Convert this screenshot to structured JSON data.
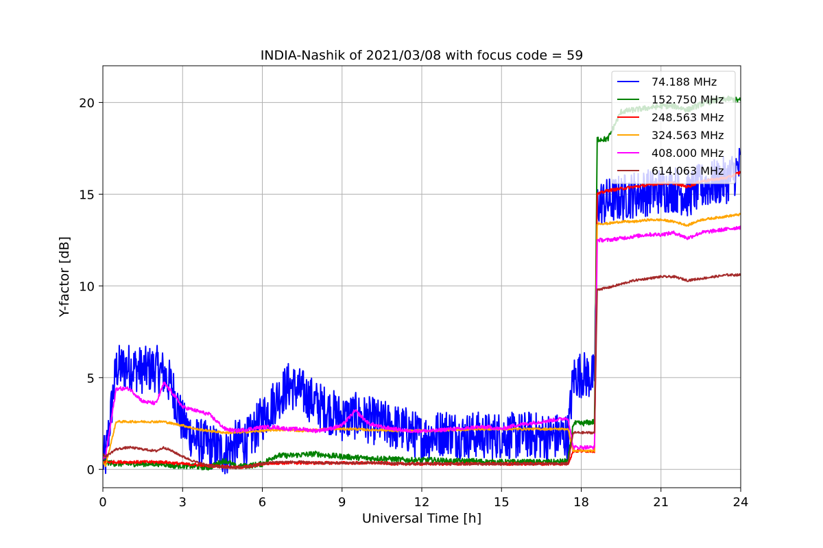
{
  "chart_data": {
    "type": "line",
    "title": "INDIA-Nashik of 2021/03/08 with focus code = 59",
    "xlabel": "Universal Time [h]",
    "ylabel": "Y-factor [dB]",
    "xlim": [
      0,
      24
    ],
    "ylim": [
      -1,
      22
    ],
    "x_ticks": [
      0,
      3,
      6,
      9,
      12,
      15,
      18,
      21,
      24
    ],
    "y_ticks": [
      0,
      5,
      10,
      15,
      20
    ],
    "grid": true,
    "legend_position": "top-right",
    "x": [
      0,
      0.1,
      0.5,
      1,
      1.5,
      2,
      2.3,
      2.6,
      3,
      3.5,
      4,
      4.6,
      5,
      5.5,
      6,
      6.5,
      7,
      7.5,
      8,
      8.5,
      9,
      9.5,
      10,
      10.5,
      11,
      11.5,
      12,
      12.5,
      13,
      13.5,
      14,
      14.5,
      15,
      15.5,
      16,
      16.5,
      17,
      17.5,
      17.7,
      18,
      18.5,
      18.6,
      19,
      19.5,
      20,
      20.5,
      21,
      21.5,
      22,
      22.5,
      23,
      23.5,
      24
    ],
    "series": [
      {
        "name": " 74.188 MHz",
        "color": "#0000ff",
        "noise": 1.3,
        "values": [
          0.5,
          0.6,
          5.5,
          5.6,
          5.4,
          5.5,
          5.2,
          4.5,
          2.5,
          1.6,
          1.3,
          0.9,
          1.4,
          1.6,
          2.8,
          3.8,
          4.6,
          4.2,
          3.6,
          3.2,
          2.8,
          2.9,
          2.7,
          2.5,
          2.3,
          2.1,
          1.7,
          1.9,
          2.1,
          1.8,
          1.9,
          1.8,
          1.9,
          1.8,
          1.9,
          1.8,
          1.8,
          1.8,
          5.0,
          5.2,
          5.0,
          14.5,
          14.6,
          14.8,
          15.0,
          15.1,
          15.2,
          15.3,
          15.0,
          15.4,
          15.6,
          15.8,
          16.5
        ]
      },
      {
        "name": "152.750 MHz",
        "color": "#008000",
        "noise": 0.15,
        "values": [
          0.6,
          0.4,
          0.3,
          0.3,
          0.3,
          0.3,
          0.3,
          0.2,
          0.2,
          0.15,
          0.1,
          0.5,
          0.15,
          0.2,
          0.3,
          0.75,
          0.75,
          0.8,
          0.85,
          0.75,
          0.7,
          0.65,
          0.6,
          0.6,
          0.55,
          0.5,
          0.5,
          0.5,
          0.45,
          0.45,
          0.45,
          0.4,
          0.4,
          0.4,
          0.4,
          0.4,
          0.4,
          0.45,
          2.5,
          2.5,
          2.6,
          18.0,
          18.0,
          19.5,
          19.6,
          19.7,
          19.8,
          19.8,
          19.6,
          19.9,
          20.1,
          20.2,
          20.1
        ]
      },
      {
        "name": "248.563 MHz",
        "color": "#ff0000",
        "noise": 0.08,
        "values": [
          0.4,
          0.4,
          0.4,
          0.4,
          0.4,
          0.4,
          0.4,
          0.35,
          0.3,
          0.25,
          0.2,
          0.15,
          0.1,
          0.15,
          0.3,
          0.35,
          0.35,
          0.35,
          0.35,
          0.35,
          0.35,
          0.35,
          0.35,
          0.35,
          0.3,
          0.3,
          0.3,
          0.3,
          0.3,
          0.3,
          0.3,
          0.3,
          0.3,
          0.3,
          0.3,
          0.3,
          0.3,
          0.3,
          1.0,
          1.0,
          1.0,
          15.0,
          15.2,
          15.3,
          15.4,
          15.5,
          15.6,
          15.6,
          15.4,
          15.7,
          15.8,
          15.9,
          16.2
        ]
      },
      {
        "name": "324.563 MHz",
        "color": "#ffa500",
        "noise": 0.06,
        "values": [
          0.4,
          0.2,
          2.6,
          2.6,
          2.6,
          2.6,
          2.6,
          2.5,
          2.4,
          2.2,
          2.1,
          2.0,
          2.0,
          2.05,
          2.1,
          2.15,
          2.15,
          2.1,
          2.15,
          2.2,
          2.2,
          2.2,
          2.15,
          2.15,
          2.1,
          2.1,
          2.1,
          2.1,
          2.15,
          2.15,
          2.2,
          2.2,
          2.2,
          2.2,
          2.2,
          2.2,
          2.2,
          2.2,
          1.0,
          1.0,
          1.0,
          13.4,
          13.4,
          13.5,
          13.5,
          13.6,
          13.6,
          13.5,
          13.3,
          13.6,
          13.7,
          13.8,
          13.9
        ]
      },
      {
        "name": "408.000 MHz",
        "color": "#ff00ff",
        "noise": 0.1,
        "values": [
          0.6,
          0.7,
          4.4,
          4.4,
          3.7,
          3.6,
          4.7,
          4.2,
          3.4,
          3.2,
          3.0,
          2.2,
          2.1,
          2.2,
          2.3,
          2.3,
          2.2,
          2.2,
          2.1,
          2.2,
          2.4,
          3.2,
          2.5,
          2.3,
          2.2,
          2.1,
          2.1,
          2.1,
          2.2,
          2.2,
          2.3,
          2.3,
          2.2,
          2.4,
          2.5,
          2.6,
          2.7,
          2.8,
          1.2,
          1.2,
          1.2,
          12.5,
          12.5,
          12.6,
          12.7,
          12.8,
          12.8,
          12.9,
          12.6,
          12.9,
          13.0,
          13.1,
          13.2
        ]
      },
      {
        "name": "614.063 MHz",
        "color": "#a52a2a",
        "noise": 0.06,
        "values": [
          0.8,
          0.7,
          1.1,
          1.2,
          1.1,
          1.0,
          1.2,
          1.0,
          0.7,
          0.4,
          0.2,
          0.1,
          0.1,
          0.15,
          0.3,
          0.4,
          0.4,
          0.4,
          0.35,
          0.35,
          0.35,
          0.35,
          0.35,
          0.35,
          0.3,
          0.3,
          0.3,
          0.3,
          0.3,
          0.3,
          0.3,
          0.3,
          0.3,
          0.3,
          0.3,
          0.3,
          0.3,
          0.3,
          2.0,
          2.0,
          2.0,
          9.8,
          9.9,
          10.1,
          10.3,
          10.4,
          10.5,
          10.5,
          10.3,
          10.4,
          10.5,
          10.6,
          10.6
        ]
      }
    ]
  }
}
